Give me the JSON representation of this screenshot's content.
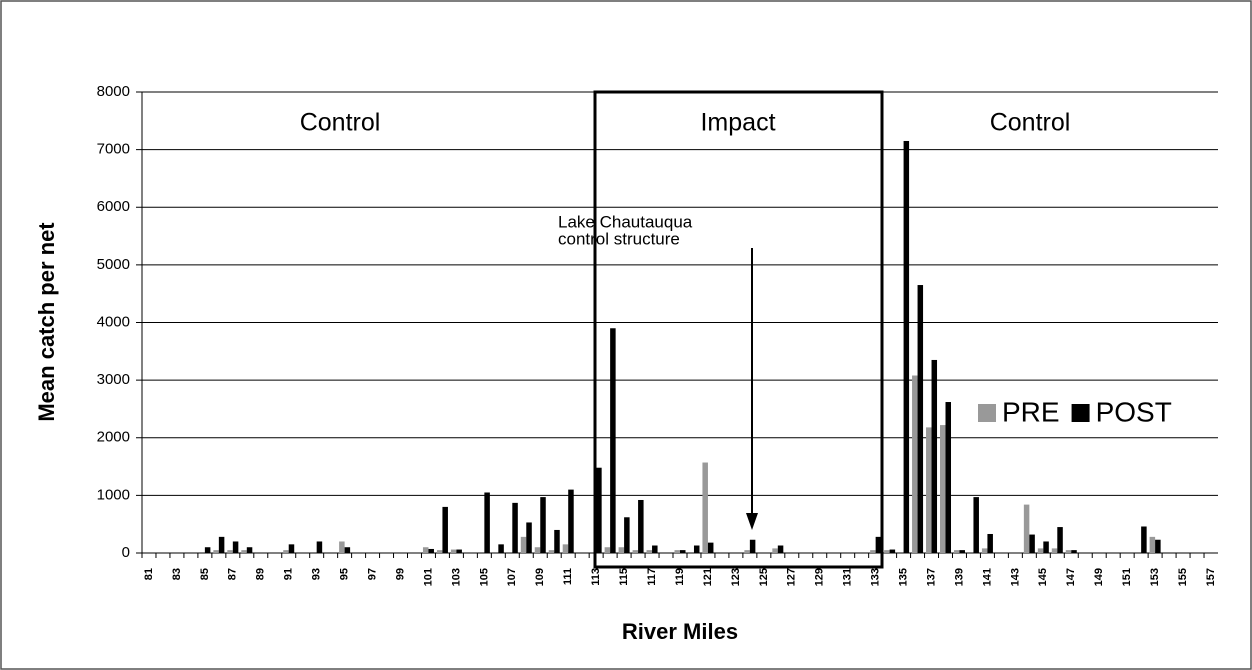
{
  "chart_data": {
    "type": "bar",
    "y_label": "Mean catch per net",
    "x_label": "River Miles",
    "regions": [
      "Control",
      "Impact",
      "Control"
    ],
    "annotation": [
      "Lake Chautauqua",
      "control structure"
    ],
    "categories": [
      "81",
      null,
      "83",
      null,
      "85",
      null,
      "87",
      null,
      "89",
      null,
      "91",
      null,
      "93",
      null,
      "95",
      null,
      "97",
      null,
      "99",
      null,
      "101",
      null,
      "103",
      null,
      "105",
      null,
      "107",
      null,
      "109",
      null,
      "111",
      null,
      "113",
      null,
      "115",
      null,
      "117",
      null,
      "119",
      null,
      "121",
      null,
      "123",
      null,
      "125",
      null,
      "127",
      null,
      "129",
      null,
      "131",
      null,
      "133",
      null,
      "135",
      null,
      "137",
      null,
      "139",
      null,
      "141",
      null,
      "143",
      null,
      "145",
      null,
      "147",
      null,
      "149",
      null,
      "151",
      null,
      "153",
      null,
      "155",
      null,
      "157"
    ],
    "series": [
      {
        "name": "PRE",
        "color": "#999999",
        "values": [
          0,
          0,
          0,
          0,
          0,
          50,
          50,
          50,
          0,
          0,
          50,
          0,
          0,
          0,
          200,
          0,
          0,
          0,
          0,
          0,
          100,
          50,
          60,
          0,
          0,
          0,
          0,
          280,
          100,
          50,
          150,
          0,
          0,
          100,
          100,
          50,
          50,
          0,
          50,
          0,
          1570,
          0,
          0,
          50,
          0,
          80,
          0,
          0,
          0,
          0,
          0,
          0,
          50,
          50,
          0,
          3080,
          2180,
          2220,
          50,
          0,
          80,
          0,
          0,
          840,
          80,
          80,
          50,
          0,
          0,
          0,
          0,
          0,
          280,
          0,
          0,
          0,
          0
        ]
      },
      {
        "name": "POST",
        "color": "#000000",
        "values": [
          0,
          0,
          0,
          0,
          100,
          280,
          200,
          100,
          0,
          0,
          150,
          0,
          200,
          0,
          100,
          0,
          0,
          0,
          0,
          0,
          70,
          800,
          60,
          0,
          1050,
          150,
          870,
          530,
          970,
          400,
          1100,
          0,
          1480,
          3900,
          620,
          920,
          130,
          0,
          50,
          130,
          180,
          0,
          0,
          230,
          0,
          130,
          0,
          0,
          0,
          0,
          0,
          0,
          280,
          60,
          7150,
          4650,
          3350,
          2620,
          50,
          970,
          330,
          0,
          0,
          320,
          200,
          450,
          50,
          0,
          0,
          0,
          0,
          460,
          230,
          0,
          0,
          0,
          0
        ]
      }
    ],
    "ylim": [
      0,
      8000
    ],
    "yticks": [
      0,
      1000,
      2000,
      3000,
      4000,
      5000,
      6000,
      7000,
      8000
    ],
    "grid": true,
    "legend": "right"
  }
}
